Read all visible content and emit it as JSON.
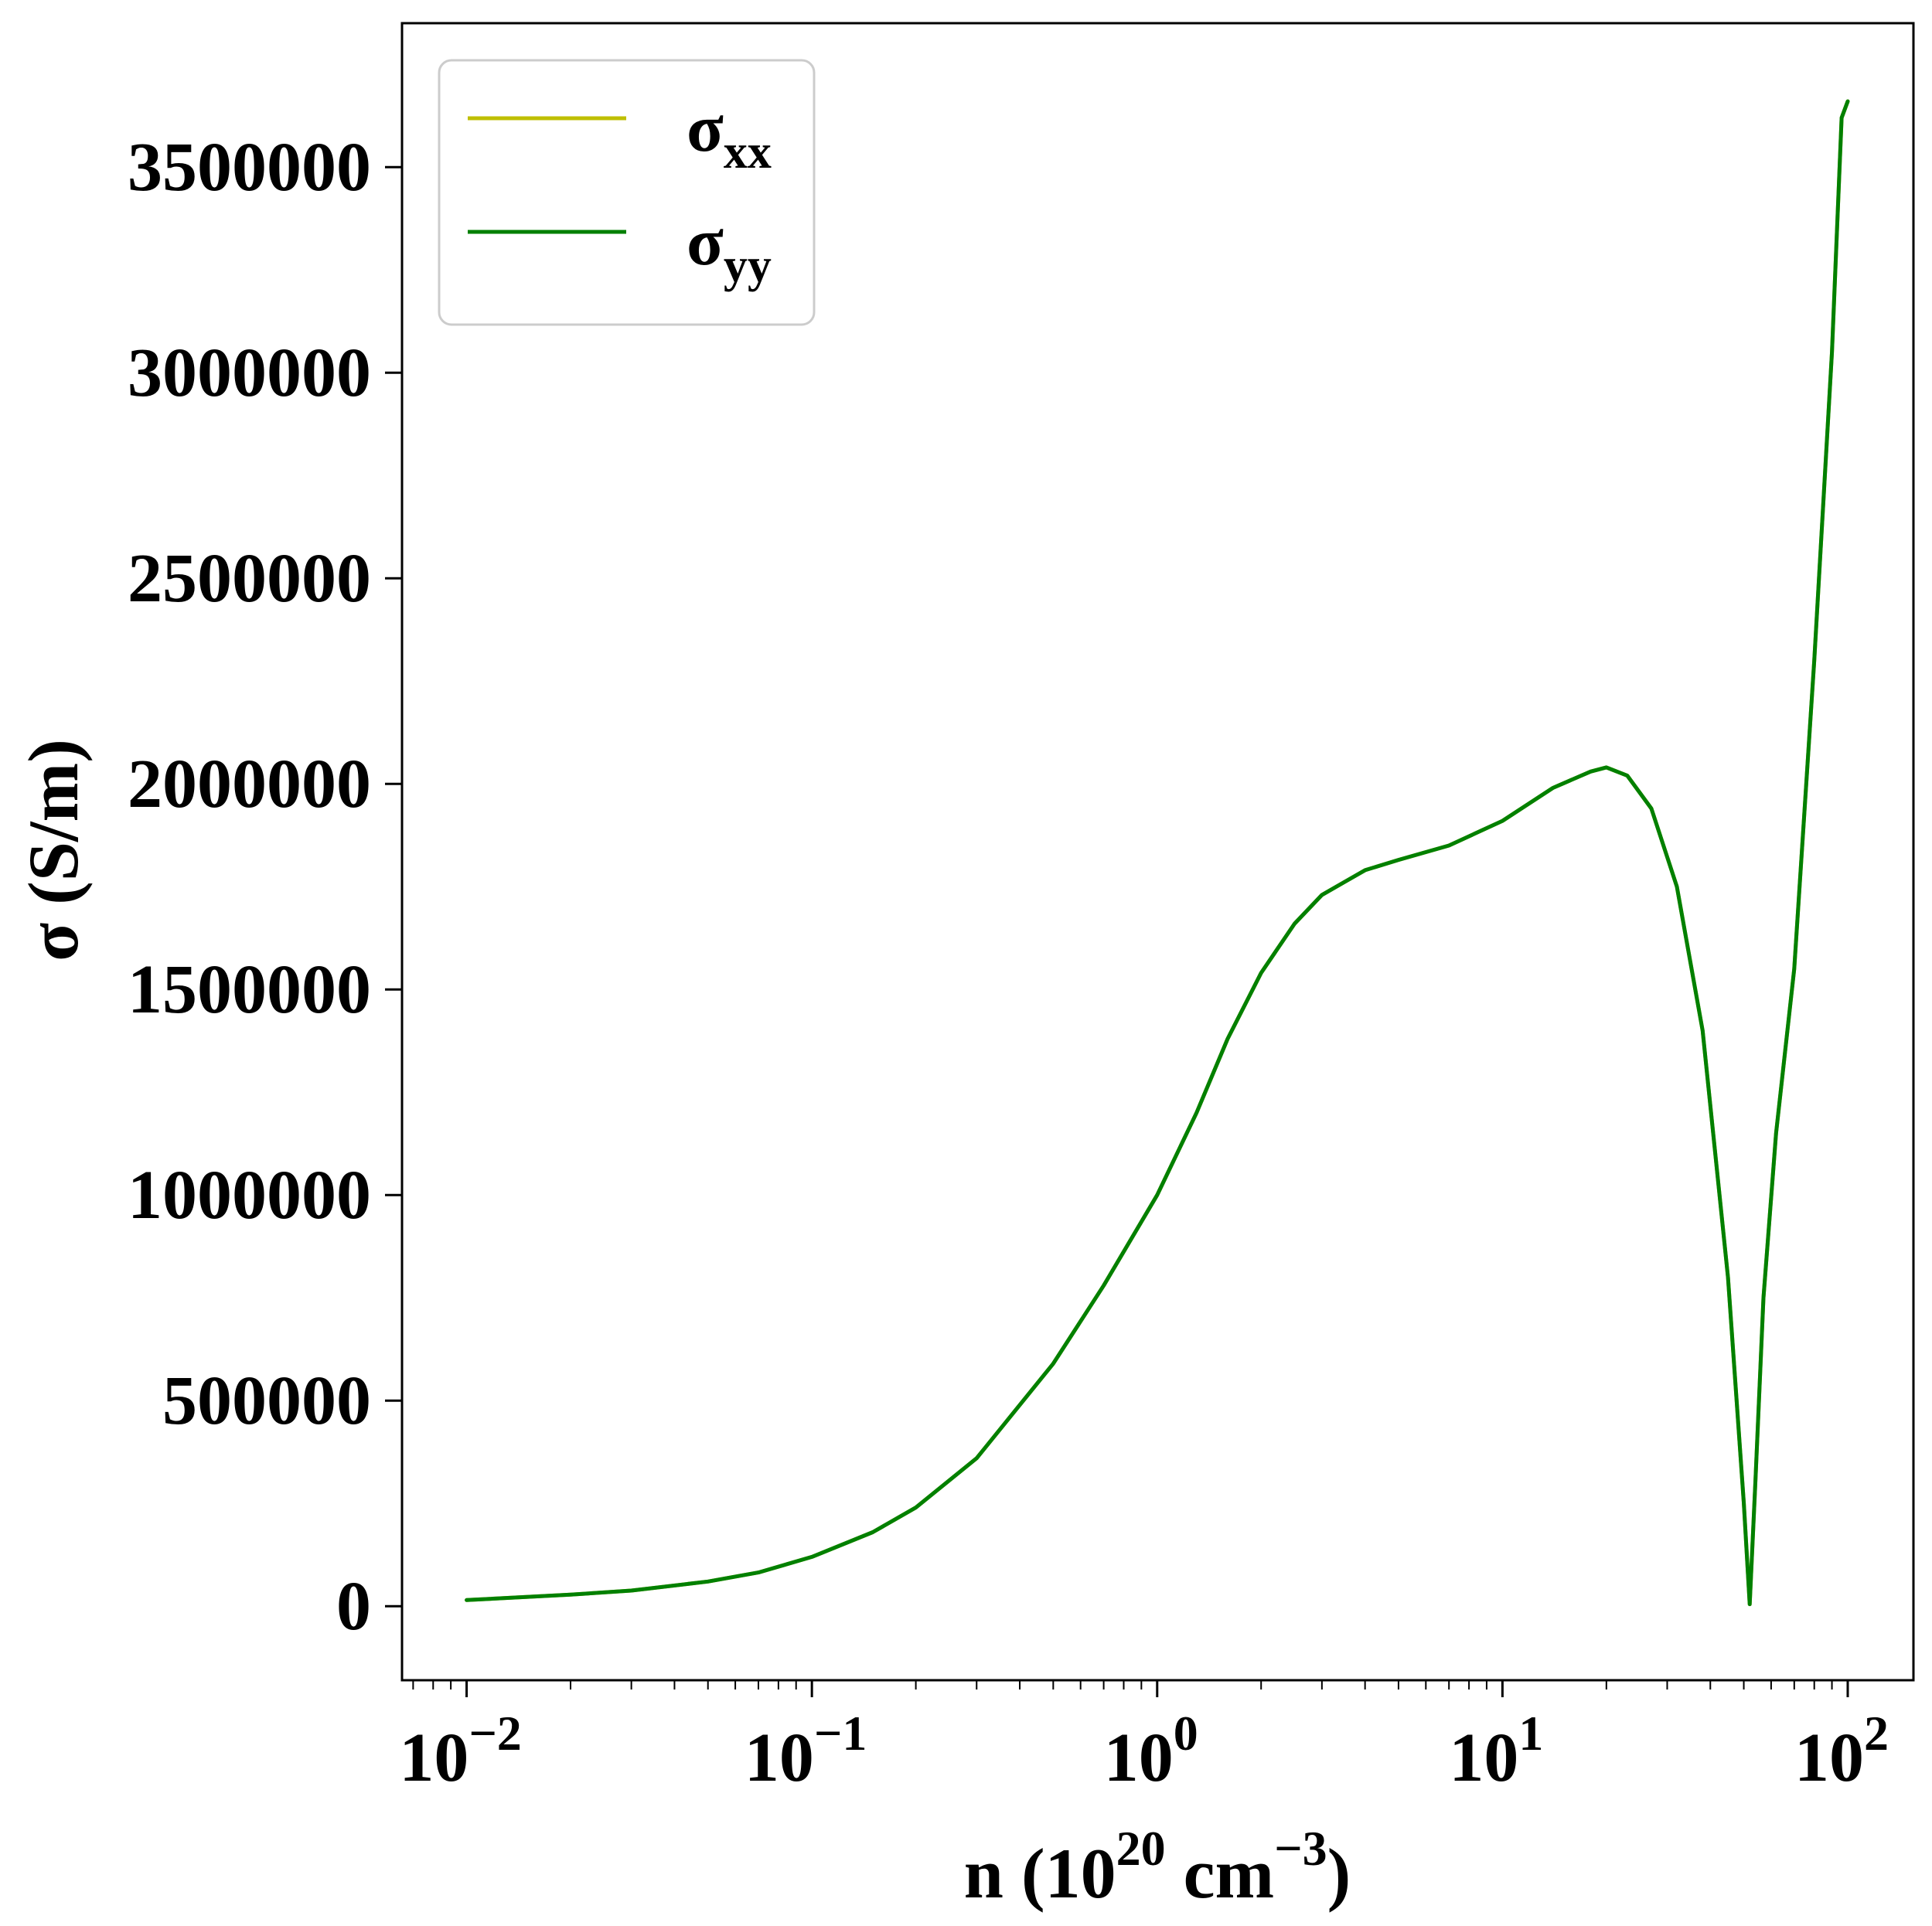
{
  "chart_data": {
    "type": "line",
    "xscale": "log",
    "xlim": [
      0.0065,
      155
    ],
    "ylim": [
      -180000,
      3850000
    ],
    "xlabel": "n (10^20 cm^-3)",
    "ylabel": "σ (S/m)",
    "x_ticks": [
      0.01,
      0.1,
      1,
      10,
      100
    ],
    "x_tick_labels": [
      {
        "base": "10",
        "exp": "−2"
      },
      {
        "base": "10",
        "exp": "−1"
      },
      {
        "base": "10",
        "exp": "0"
      },
      {
        "base": "10",
        "exp": "1"
      },
      {
        "base": "10",
        "exp": "2"
      }
    ],
    "y_ticks": [
      0,
      500000,
      1000000,
      1500000,
      2000000,
      2500000,
      3000000,
      3500000
    ],
    "y_tick_labels": [
      "0",
      "500000",
      "1000000",
      "1500000",
      "2000000",
      "2500000",
      "3000000",
      "3500000"
    ],
    "grid": false,
    "legend_position": "top-left",
    "series": [
      {
        "name": "σxx",
        "color": "#bfbf00",
        "x": [
          0.01,
          0.02,
          0.03,
          0.05,
          0.07,
          0.1,
          0.15,
          0.2,
          0.3,
          0.5,
          0.7,
          1,
          1.3,
          1.6,
          2,
          2.5,
          3,
          4,
          5,
          7,
          10,
          14,
          18,
          20,
          23,
          27,
          32,
          38,
          45,
          50,
          52,
          54,
          57,
          62,
          70,
          80,
          90,
          96,
          100
        ],
        "y": [
          15000,
          28000,
          38000,
          60000,
          82000,
          120000,
          180000,
          240000,
          360000,
          590000,
          780000,
          1000000,
          1200000,
          1380000,
          1540000,
          1660000,
          1730000,
          1790000,
          1815000,
          1850000,
          1910000,
          1990000,
          2030000,
          2040000,
          2020000,
          1940000,
          1750000,
          1400000,
          800000,
          250000,
          5000,
          300000,
          750000,
          1150000,
          1550000,
          2300000,
          3050000,
          3620000,
          3660000
        ]
      },
      {
        "name": "σyy",
        "color": "#008000",
        "x": [
          0.01,
          0.02,
          0.03,
          0.05,
          0.07,
          0.1,
          0.15,
          0.2,
          0.3,
          0.5,
          0.7,
          1,
          1.3,
          1.6,
          2,
          2.5,
          3,
          4,
          5,
          7,
          10,
          14,
          18,
          20,
          23,
          27,
          32,
          38,
          45,
          50,
          52,
          54,
          57,
          62,
          70,
          80,
          90,
          96,
          100
        ],
        "y": [
          15000,
          28000,
          38000,
          60000,
          82000,
          120000,
          180000,
          240000,
          360000,
          590000,
          780000,
          1000000,
          1200000,
          1380000,
          1540000,
          1660000,
          1730000,
          1790000,
          1815000,
          1850000,
          1910000,
          1990000,
          2030000,
          2040000,
          2020000,
          1940000,
          1750000,
          1400000,
          800000,
          250000,
          5000,
          300000,
          750000,
          1150000,
          1550000,
          2300000,
          3050000,
          3620000,
          3660000
        ]
      }
    ],
    "axis_title_parts": {
      "x": {
        "prefix": "n (10",
        "sup1": "20",
        "mid": " cm",
        "sup2": "−3",
        "suffix": ")"
      },
      "y": "σ (S/m)"
    },
    "legend_entries": [
      {
        "symbol": "σ",
        "sub": "xx"
      },
      {
        "symbol": "σ",
        "sub": "yy"
      }
    ]
  }
}
